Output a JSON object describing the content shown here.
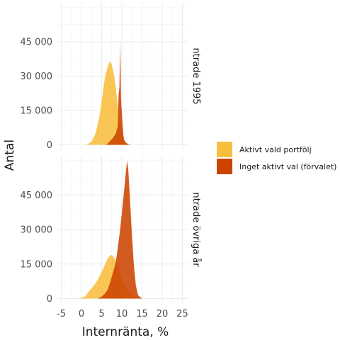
{
  "chart_data": {
    "type": "histogram",
    "xlabel": "Internränta, %",
    "ylabel": "Antal",
    "x_ticks": [
      -5,
      0,
      5,
      10,
      15,
      20,
      25
    ],
    "x_tick_labels": [
      "-5",
      "0",
      "5",
      "10",
      "15",
      "20",
      "25"
    ],
    "xlim": [
      -5.8,
      26.5
    ],
    "y_ticks": [
      0,
      15000,
      30000,
      45000
    ],
    "y_tick_labels": [
      "0",
      "15 000",
      "30 000",
      "45 000"
    ],
    "ylim": [
      -2000,
      62000
    ],
    "grid": true,
    "legend_position": "right",
    "series": [
      {
        "name": "Aktivt vald portfölj",
        "color": "#F8BE3D"
      },
      {
        "name": "Inget aktivt val (förvalet)",
        "color": "#CC4400"
      }
    ],
    "panels": [
      {
        "strip_label": "ntrade 1995",
        "series": [
          {
            "name": "Aktivt vald portfölj",
            "x": [
              0.5,
              1.5,
              2.5,
              3.5,
              4.5,
              5.0,
              5.5,
              6.0,
              6.5,
              7.0,
              7.5,
              8.0,
              8.5,
              9.0,
              9.5,
              10.0,
              10.5,
              11.0,
              11.5,
              12.0,
              12.5
            ],
            "values": [
              0,
              300,
              1500,
              5000,
              13000,
              19000,
              26000,
              31000,
              34000,
              36500,
              35000,
              31000,
              25000,
              17000,
              10000,
              5000,
              2200,
              900,
              300,
              100,
              0
            ]
          },
          {
            "name": "Inget aktivt val (förvalet)",
            "x": [
              6.0,
              6.5,
              7.0,
              7.5,
              8.0,
              8.5,
              9.0,
              9.2,
              9.4,
              9.6,
              9.8,
              10.0,
              10.2,
              10.4,
              10.6,
              11.0,
              11.5,
              12.0,
              12.5
            ],
            "values": [
              0,
              600,
              1500,
              2500,
              3500,
              5000,
              8000,
              22000,
              25000,
              45000,
              20000,
              14000,
              9000,
              4000,
              2000,
              1000,
              400,
              100,
              0
            ]
          }
        ]
      },
      {
        "strip_label": "ntrade övriga år",
        "series": [
          {
            "name": "Aktivt vald portfölj",
            "x": [
              -1.0,
              0.0,
              1.0,
              2.0,
              3.0,
              4.0,
              5.0,
              6.0,
              6.5,
              7.0,
              7.5,
              8.0,
              8.5,
              9.0,
              9.5,
              10.0,
              11.0,
              12.0,
              13.0,
              14.0,
              15.0
            ],
            "values": [
              0,
              300,
              1000,
              3500,
              5500,
              8000,
              11500,
              15500,
              17500,
              18500,
              19000,
              18000,
              16500,
              14000,
              11000,
              8500,
              5000,
              2500,
              900,
              200,
              0
            ]
          },
          {
            "name": "Inget aktivt val (förvalet)",
            "x": [
              4.0,
              5.0,
              6.0,
              6.5,
              7.0,
              7.5,
              8.0,
              8.5,
              9.0,
              9.5,
              10.0,
              10.5,
              11.0,
              11.3,
              11.6,
              12.0,
              12.5,
              13.0,
              13.5,
              14.0,
              15.0
            ],
            "values": [
              0,
              800,
              2500,
              4000,
              6500,
              9500,
              12500,
              16000,
              22000,
              29000,
              37000,
              46000,
              55000,
              60000,
              56000,
              44000,
              28000,
              14000,
              5500,
              1500,
              0
            ]
          }
        ]
      }
    ]
  }
}
